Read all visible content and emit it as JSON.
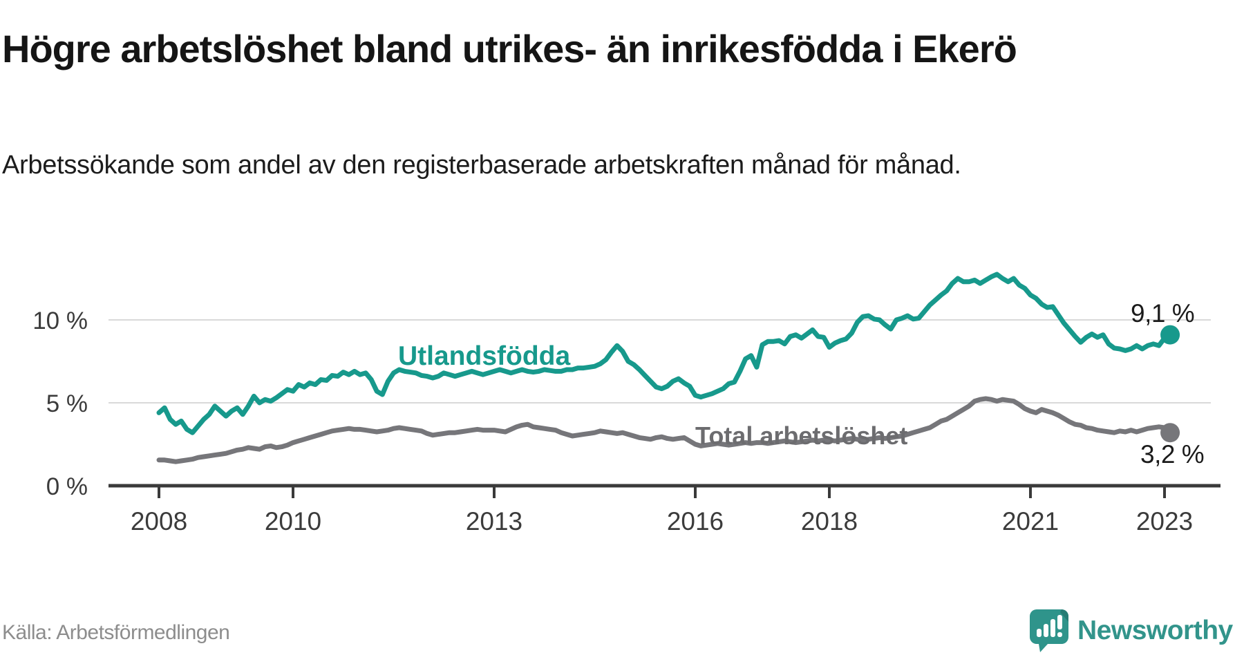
{
  "header": {
    "title": "Högre arbetslöshet bland utrikes- än inrikesfödda i Ekerö",
    "subtitle": "Arbetssökande som andel av den registerbaserade arbetskraften månad för månad."
  },
  "footer": {
    "source": "Källa: Arbetsförmedlingen",
    "brand": "Newsworthy"
  },
  "colors": {
    "series_utlandsfodda": "#17998c",
    "series_total": "#76767a",
    "axis": "#3a3a3a",
    "grid": "#d9d9d9",
    "tick_text": "#3b3b3b",
    "brand_teal": "#2f948b"
  },
  "chart_data": {
    "type": "line",
    "title": "Högre arbetslöshet bland utrikes- än inrikesfödda i Ekerö",
    "xlabel": "",
    "ylabel": "Arbetssökande som andel av den registerbaserade arbetskraften",
    "x_unit": "month",
    "x_start": "2008-01",
    "x_end": "2023-02",
    "x_ticks": [
      2008,
      2010,
      2013,
      2016,
      2018,
      2021,
      2023
    ],
    "y_ticks": [
      {
        "label": "0 %",
        "value": 0
      },
      {
        "label": "5 %",
        "value": 5
      },
      {
        "label": "10 %",
        "value": 10
      }
    ],
    "ylim": [
      0,
      13.8
    ],
    "grid": "horizontal",
    "legend_position": "inline-labels",
    "series": [
      {
        "name": "Utlandsfödda",
        "label": "Utlandsfödda",
        "color": "#17998c",
        "end_annotation": "9,1 %",
        "end_value": 9.1,
        "values": [
          4.4,
          4.7,
          4.0,
          3.7,
          3.9,
          3.4,
          3.2,
          3.6,
          4.0,
          4.3,
          4.8,
          4.5,
          4.2,
          4.5,
          4.7,
          4.3,
          4.8,
          5.4,
          5.0,
          5.2,
          5.1,
          5.3,
          5.55,
          5.8,
          5.7,
          6.1,
          5.95,
          6.2,
          6.1,
          6.4,
          6.35,
          6.65,
          6.6,
          6.85,
          6.7,
          6.9,
          6.7,
          6.8,
          6.4,
          5.7,
          5.5,
          6.3,
          6.8,
          7.0,
          6.9,
          6.85,
          6.8,
          6.65,
          6.6,
          6.5,
          6.6,
          6.8,
          6.7,
          6.6,
          6.7,
          6.8,
          6.9,
          6.8,
          6.7,
          6.8,
          6.9,
          7.0,
          6.9,
          6.8,
          6.9,
          7.0,
          6.9,
          6.85,
          6.9,
          7.0,
          6.95,
          6.9,
          6.9,
          7.0,
          7.0,
          7.1,
          7.1,
          7.15,
          7.2,
          7.35,
          7.6,
          8.05,
          8.45,
          8.1,
          7.5,
          7.3,
          7.0,
          6.65,
          6.3,
          5.95,
          5.85,
          6.0,
          6.3,
          6.45,
          6.2,
          6.0,
          5.45,
          5.35,
          5.45,
          5.55,
          5.7,
          5.85,
          6.15,
          6.25,
          6.9,
          7.65,
          7.85,
          7.15,
          8.5,
          8.7,
          8.7,
          8.75,
          8.55,
          9.0,
          9.1,
          8.9,
          9.15,
          9.4,
          9.0,
          8.95,
          8.35,
          8.6,
          8.75,
          8.85,
          9.2,
          9.85,
          10.2,
          10.25,
          10.05,
          10.0,
          9.7,
          9.45,
          10.0,
          10.1,
          10.25,
          10.05,
          10.1,
          10.5,
          10.9,
          11.2,
          11.5,
          11.75,
          12.2,
          12.5,
          12.3,
          12.3,
          12.4,
          12.2,
          12.4,
          12.6,
          12.75,
          12.5,
          12.3,
          12.5,
          12.1,
          11.9,
          11.5,
          11.3,
          10.95,
          10.75,
          10.8,
          10.3,
          9.8,
          9.4,
          9.0,
          8.65,
          8.95,
          9.15,
          8.95,
          9.1,
          8.55,
          8.3,
          8.25,
          8.15,
          8.25,
          8.45,
          8.25,
          8.45,
          8.55,
          8.45,
          8.9,
          9.1
        ]
      },
      {
        "name": "Total arbetslöshet",
        "label": "Total arbetslöshet",
        "color": "#76767a",
        "end_annotation": "3,2 %",
        "end_value": 3.2,
        "values": [
          1.55,
          1.55,
          1.5,
          1.45,
          1.5,
          1.55,
          1.6,
          1.7,
          1.75,
          1.8,
          1.85,
          1.9,
          1.95,
          2.05,
          2.15,
          2.2,
          2.3,
          2.25,
          2.2,
          2.35,
          2.4,
          2.3,
          2.35,
          2.45,
          2.6,
          2.7,
          2.8,
          2.9,
          3.0,
          3.1,
          3.2,
          3.3,
          3.35,
          3.4,
          3.45,
          3.4,
          3.4,
          3.35,
          3.3,
          3.25,
          3.3,
          3.35,
          3.45,
          3.5,
          3.45,
          3.4,
          3.35,
          3.3,
          3.15,
          3.05,
          3.1,
          3.15,
          3.2,
          3.2,
          3.25,
          3.3,
          3.35,
          3.4,
          3.35,
          3.35,
          3.35,
          3.3,
          3.25,
          3.4,
          3.55,
          3.65,
          3.7,
          3.55,
          3.5,
          3.45,
          3.4,
          3.35,
          3.2,
          3.1,
          3.0,
          3.05,
          3.1,
          3.15,
          3.2,
          3.3,
          3.25,
          3.2,
          3.15,
          3.2,
          3.1,
          3.0,
          2.9,
          2.85,
          2.8,
          2.9,
          2.95,
          2.85,
          2.8,
          2.85,
          2.9,
          2.7,
          2.5,
          2.4,
          2.45,
          2.5,
          2.55,
          2.5,
          2.45,
          2.5,
          2.55,
          2.6,
          2.55,
          2.6,
          2.6,
          2.55,
          2.6,
          2.65,
          2.7,
          2.65,
          2.6,
          2.65,
          2.7,
          2.75,
          2.7,
          2.75,
          2.75,
          2.7,
          2.75,
          2.8,
          2.85,
          2.8,
          2.75,
          2.8,
          2.85,
          2.9,
          2.85,
          2.9,
          2.95,
          3.0,
          3.1,
          3.2,
          3.3,
          3.4,
          3.5,
          3.7,
          3.9,
          4.0,
          4.2,
          4.4,
          4.6,
          4.8,
          5.1,
          5.2,
          5.25,
          5.2,
          5.1,
          5.2,
          5.15,
          5.1,
          4.9,
          4.65,
          4.5,
          4.4,
          4.6,
          4.5,
          4.4,
          4.25,
          4.05,
          3.85,
          3.7,
          3.65,
          3.5,
          3.45,
          3.35,
          3.3,
          3.25,
          3.2,
          3.3,
          3.25,
          3.35,
          3.25,
          3.35,
          3.45,
          3.5,
          3.55,
          3.5,
          3.2
        ]
      }
    ]
  }
}
